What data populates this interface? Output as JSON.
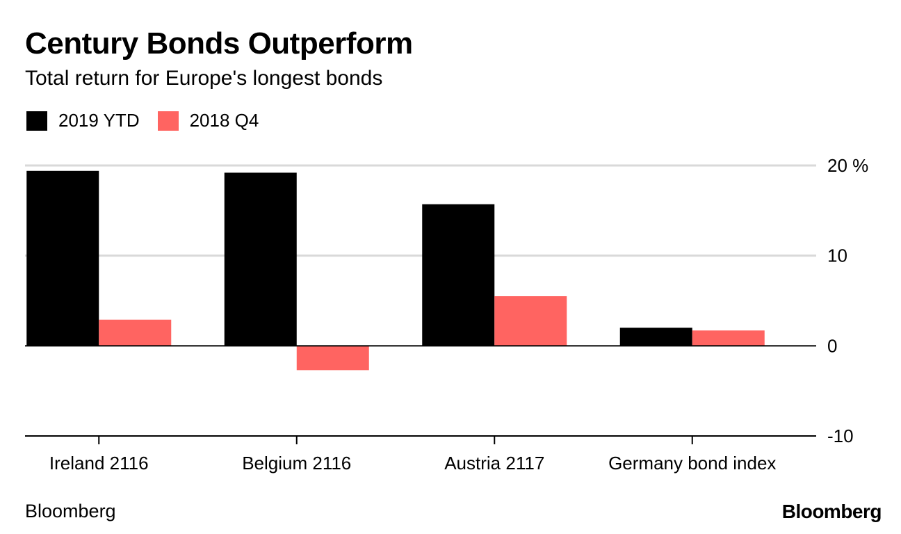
{
  "header": {
    "title": "Century Bonds Outperform",
    "subtitle": "Total return for Europe's longest bonds"
  },
  "legend": {
    "items": [
      {
        "label": "2019 YTD",
        "color": "#000000"
      },
      {
        "label": "2018 Q4",
        "color": "#ff6461"
      }
    ]
  },
  "chart_data": {
    "type": "bar",
    "title": "Century Bonds Outperform",
    "subtitle": "Total return for Europe's longest bonds",
    "categories": [
      "Ireland 2116",
      "Belgium 2116",
      "Austria 2117",
      "Germany bond index"
    ],
    "series": [
      {
        "name": "2019 YTD",
        "color": "#000000",
        "values": [
          19.4,
          19.2,
          15.7,
          2.0
        ]
      },
      {
        "name": "2018 Q4",
        "color": "#ff6461",
        "values": [
          2.9,
          -2.7,
          5.5,
          1.7
        ]
      }
    ],
    "ylim": [
      -10,
      20
    ],
    "yticks": [
      20,
      10,
      0,
      -10
    ],
    "ytick_labels": [
      "20 %",
      "10",
      "0",
      "-10"
    ],
    "ylabel": "",
    "xlabel": "",
    "legend_position": "top-left",
    "grid": true
  },
  "footer": {
    "source": "Bloomberg",
    "brand": "Bloomberg"
  }
}
